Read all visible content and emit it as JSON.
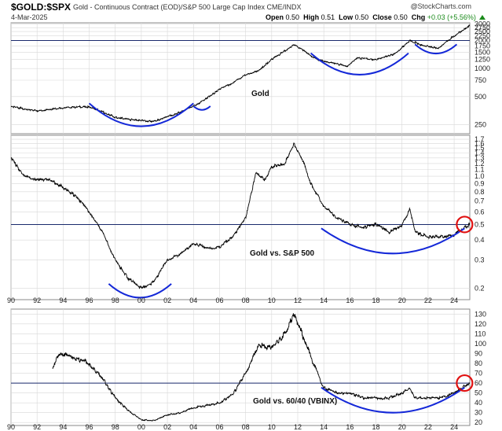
{
  "header": {
    "ticker": "$GOLD:$SPX",
    "description": "Gold - Continuous Contract (EOD)/S&P 500 Large Cap Index  CME/INDX",
    "date": "4-Mar-2025",
    "brand_at": "@",
    "brand": "StockCharts.com",
    "open_label": "Open",
    "open": "0.50",
    "high_label": "High",
    "high": "0.51",
    "low_label": "Low",
    "low": "0.50",
    "close_label": "Close",
    "close": "0.50",
    "chg_label": "Chg",
    "chg": "+0.03 (+5.56%)"
  },
  "colors": {
    "price_line": "#000000",
    "grid": "#d8d8d8",
    "reference_line": "#1a2a6c",
    "arc": "#1428d8",
    "circle": "#e01010",
    "up": "#1a8a1a"
  },
  "chart_data": [
    {
      "type": "line",
      "title": "",
      "label": "Gold",
      "scale": "log",
      "x_range": [
        1990,
        2025.2
      ],
      "ylim": [
        200,
        3100
      ],
      "y_ticks": [
        250,
        500,
        750,
        1000,
        1250,
        1500,
        1750,
        2000,
        2250,
        2500,
        2750,
        3000
      ],
      "y_tick_labels": [
        "250",
        "500",
        "750",
        "1000",
        "1250",
        "1500",
        "1750",
        "2000",
        "2250",
        "2500",
        "2750",
        "3000"
      ],
      "reference_line": 2000,
      "series": [
        {
          "x": [
            1990,
            1992,
            1994,
            1996,
            1998,
            1999.5,
            2001,
            2003,
            2004.5,
            2006,
            2007,
            2008,
            2009,
            2010,
            2011.7,
            2013.5,
            2015.8,
            2016.5,
            2018,
            2019.5,
            2020.6,
            2021.5,
            2022.8,
            2023.5,
            2024.5,
            2025.2
          ],
          "values": [
            390,
            350,
            380,
            390,
            300,
            280,
            270,
            340,
            430,
            600,
            700,
            850,
            950,
            1250,
            1800,
            1250,
            1060,
            1300,
            1250,
            1450,
            2000,
            1800,
            1650,
            2000,
            2500,
            2900
          ]
        }
      ],
      "arcs": [
        {
          "x": [
            1996,
            2004
          ],
          "y_mid": 240
        },
        {
          "x": [
            2004,
            2005.3
          ],
          "y_mid": 360
        },
        {
          "x": [
            2013,
            2020.5
          ],
          "y_mid": 860
        },
        {
          "x": [
            2021,
            2024.2
          ],
          "y_mid": 1450
        }
      ]
    },
    {
      "type": "line",
      "title": "",
      "label": "Gold vs. S&P 500",
      "scale": "log",
      "x_range": [
        1990,
        2025.2
      ],
      "ylim": [
        0.17,
        1.8
      ],
      "y_ticks": [
        0.2,
        0.3,
        0.4,
        0.5,
        0.6,
        0.7,
        0.8,
        0.9,
        1.0,
        1.1,
        1.2,
        1.3,
        1.4,
        1.5,
        1.6,
        1.7
      ],
      "y_tick_labels": [
        "0.2",
        "0.3",
        "0.4",
        "0.5",
        "0.6",
        "0.7",
        "0.8",
        "0.9",
        "1.0",
        "1.1",
        "1.2",
        "1.3",
        "1.4",
        "1.5",
        "1.6",
        "1.7"
      ],
      "reference_line": 0.5,
      "series": [
        {
          "x": [
            1990,
            1991,
            1992,
            1993,
            1994,
            1995,
            1996,
            1997,
            1998,
            1999,
            2000,
            2001,
            2002,
            2003,
            2004,
            2005,
            2006,
            2007,
            2008,
            2008.8,
            2009.5,
            2010,
            2011,
            2011.7,
            2012.5,
            2013,
            2014,
            2015,
            2016,
            2017,
            2018,
            2019,
            2020,
            2020.6,
            2021,
            2022,
            2023,
            2024,
            2024.6,
            2025.2
          ],
          "values": [
            1.3,
            1.0,
            0.95,
            0.95,
            0.85,
            0.75,
            0.6,
            0.45,
            0.3,
            0.23,
            0.2,
            0.22,
            0.3,
            0.33,
            0.38,
            0.36,
            0.36,
            0.42,
            0.55,
            1.05,
            0.95,
            1.15,
            1.2,
            1.6,
            1.2,
            0.9,
            0.65,
            0.55,
            0.5,
            0.48,
            0.5,
            0.45,
            0.5,
            0.62,
            0.45,
            0.42,
            0.42,
            0.43,
            0.47,
            0.5
          ]
        }
      ],
      "arcs": [
        {
          "x": [
            1997.5,
            2002.3
          ],
          "y_mid": 0.175
        },
        {
          "x": [
            2013.8,
            2024.8
          ],
          "y_mid": 0.33
        }
      ],
      "highlight": {
        "x": 2024.8,
        "y": 0.5
      }
    },
    {
      "type": "line",
      "title": "",
      "label": "Gold vs. 60/40 (VBINX)",
      "scale": "linear",
      "x_range": [
        1990,
        2025.2
      ],
      "x_ticks": [
        1990,
        1992,
        1994,
        1996,
        1998,
        2000,
        2002,
        2004,
        2006,
        2008,
        2010,
        2012,
        2014,
        2016,
        2018,
        2020,
        2022,
        2024
      ],
      "x_tick_labels": [
        "90",
        "92",
        "94",
        "96",
        "98",
        "00",
        "02",
        "04",
        "06",
        "08",
        "10",
        "12",
        "14",
        "16",
        "18",
        "20",
        "22",
        "24"
      ],
      "ylim": [
        17,
        135
      ],
      "y_ticks": [
        20,
        30,
        40,
        50,
        60,
        70,
        80,
        90,
        100,
        110,
        120,
        130
      ],
      "y_tick_labels": [
        "20",
        "30",
        "40",
        "50",
        "60",
        "70",
        "80",
        "90",
        "100",
        "110",
        "120",
        "130"
      ],
      "reference_line": 60,
      "series": [
        {
          "x": [
            1993.2,
            1993.6,
            1994.3,
            1995,
            1996,
            1997,
            1998,
            1999,
            2000,
            2001,
            2002,
            2003,
            2004,
            2005,
            2006,
            2007,
            2008,
            2009,
            2010,
            2011,
            2011.7,
            2012.5,
            2013.2,
            2014,
            2015,
            2016,
            2017,
            2018,
            2019,
            2020,
            2020.6,
            2021,
            2022,
            2023,
            2024,
            2025.2
          ],
          "values": [
            75,
            88,
            90,
            85,
            80,
            65,
            45,
            32,
            23,
            22,
            28,
            30,
            35,
            37,
            40,
            48,
            70,
            100,
            95,
            110,
            130,
            105,
            80,
            55,
            50,
            50,
            45,
            45,
            45,
            50,
            55,
            45,
            45,
            45,
            50,
            60
          ]
        }
      ],
      "arcs": [
        {
          "x": [
            2013.8,
            2024.8
          ],
          "y_mid": 30
        }
      ],
      "highlight": {
        "x": 2024.8,
        "y": 60
      }
    }
  ]
}
